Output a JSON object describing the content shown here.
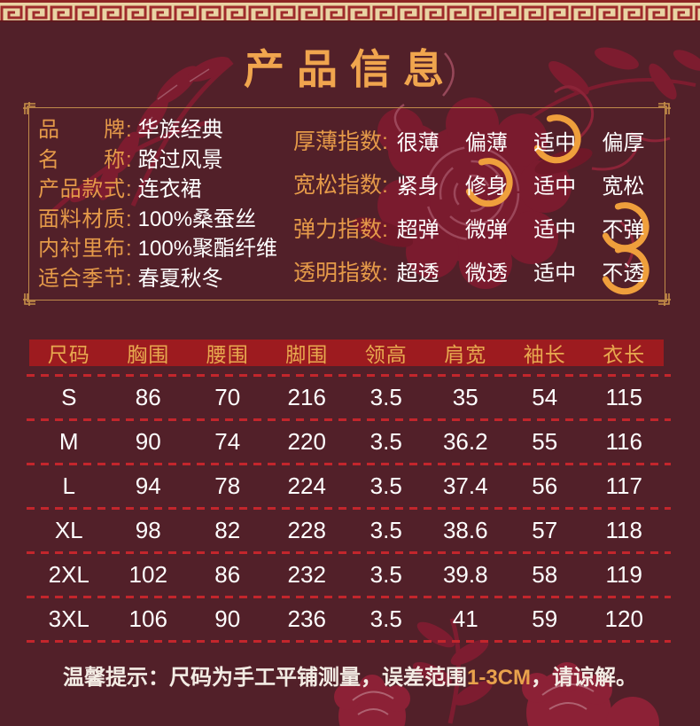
{
  "title": "产品信息",
  "info": {
    "colon": ":",
    "specs": [
      {
        "label": "品牌",
        "value": "华族经典"
      },
      {
        "label": "名称",
        "value": "路过风景"
      },
      {
        "label": "产品款式",
        "value": "连衣裙"
      },
      {
        "label": "面料材质",
        "value": "100%桑蚕丝"
      },
      {
        "label": "内衬里布",
        "value": "100%聚酯纤维"
      },
      {
        "label": "适合季节",
        "value": "春夏秋冬"
      }
    ],
    "indices": [
      {
        "label": "厚薄指数",
        "options": [
          "很薄",
          "偏薄",
          "适中",
          "偏厚"
        ],
        "selected": 2
      },
      {
        "label": "宽松指数",
        "options": [
          "紧身",
          "修身",
          "适中",
          "宽松"
        ],
        "selected": 1
      },
      {
        "label": "弹力指数",
        "options": [
          "超弹",
          "微弹",
          "适中",
          "不弹"
        ],
        "selected": 3
      },
      {
        "label": "透明指数",
        "options": [
          "超透",
          "微透",
          "适中",
          "不透"
        ],
        "selected": 3
      }
    ]
  },
  "size_table": {
    "columns": [
      "尺码",
      "胸围",
      "腰围",
      "脚围",
      "领高",
      "肩宽",
      "袖长",
      "衣长"
    ],
    "rows": [
      [
        "S",
        "86",
        "70",
        "216",
        "3.5",
        "35",
        "54",
        "115"
      ],
      [
        "M",
        "90",
        "74",
        "220",
        "3.5",
        "36.2",
        "55",
        "116"
      ],
      [
        "L",
        "94",
        "78",
        "224",
        "3.5",
        "37.4",
        "56",
        "117"
      ],
      [
        "XL",
        "98",
        "82",
        "228",
        "3.5",
        "38.6",
        "57",
        "118"
      ],
      [
        "2XL",
        "102",
        "86",
        "232",
        "3.5",
        "39.8",
        "58",
        "119"
      ],
      [
        "3XL",
        "106",
        "90",
        "236",
        "3.5",
        "41",
        "59",
        "120"
      ]
    ]
  },
  "note": {
    "prefix": "温馨提示：尺码为手工平铺测量，误差范围",
    "highlight": "1-3CM",
    "suffix": "，请谅解。"
  },
  "colors": {
    "background": "#522029",
    "gold_text": "#e59a49",
    "title_gold": "#f0a54e",
    "white_text": "#ffffff",
    "header_band_red": "#9d1b1f",
    "dash_red": "#c3262c",
    "border_gold": "#c08a4a",
    "marker_gold": "#ef9f3c",
    "flower_crimson": "#7d1c2f"
  }
}
